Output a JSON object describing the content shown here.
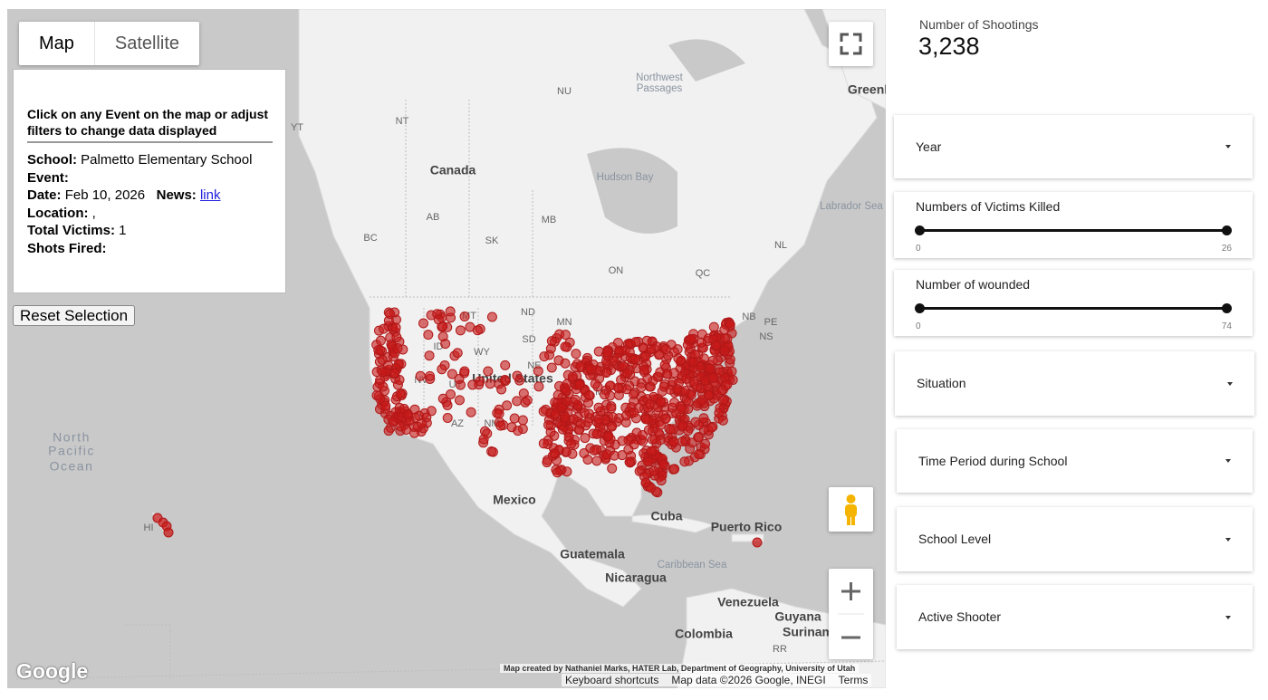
{
  "map": {
    "tabs": [
      "Map",
      "Satellite"
    ],
    "labels": [
      "NU",
      "Northwest",
      "Passages",
      "Greenl",
      "NT",
      "YT",
      "Canada",
      "Hudson Bay",
      "Labrador Sea",
      "AB",
      "MB",
      "BC",
      "SK",
      "ON",
      "QC",
      "NL",
      "NB",
      "PE",
      "NS",
      "ND",
      "MT",
      "MN",
      "SD",
      "WY",
      "ID",
      "NV",
      "UT",
      "United States",
      "NE",
      "MO",
      "AZ",
      "NM",
      "Mexico",
      "Cuba",
      "Puerto Rico",
      "Guatemala",
      "Nicaragua",
      "Caribbean Sea",
      "Venezuela",
      "Guyana",
      "Surinam",
      "Colombia",
      "RR",
      "North",
      "Pacific",
      "Ocean",
      "HI"
    ],
    "attribution": "Map created by Nathaniel Marks, HATER Lab, Department of Geography, University of Utah",
    "footer": [
      "Keyboard shortcuts",
      "Map data ©2026 Google, INEGI",
      "Terms"
    ],
    "logo": "Google"
  },
  "info": {
    "heading": "Click on any Event on the map or adjust filters to change data displayed",
    "school": {
      "label": "School:",
      "value": "Palmetto Elementary School"
    },
    "event": {
      "label": "Event:"
    },
    "date": {
      "label": "Date:",
      "value": "Feb 10, 2026"
    },
    "news": {
      "label": "News:",
      "value": "link"
    },
    "location": {
      "label": "Location:",
      "value": ","
    },
    "victims": {
      "label": "Total Victims:",
      "value": "1"
    },
    "shots": {
      "label": "Shots Fired:"
    }
  },
  "reset_button": "Reset Selection",
  "kpi": {
    "label": "Number of Shootings",
    "value": "3,238"
  },
  "filters": [
    {
      "label": "Year"
    },
    {
      "label": "Numbers of Victims Killed",
      "min": 0,
      "max": 26
    },
    {
      "label": "Number of wounded",
      "min": 0,
      "max": 74
    },
    {
      "label": "Situation"
    },
    {
      "label": "Time Period during School"
    },
    {
      "label": "School Level"
    },
    {
      "label": "Active Shooter"
    }
  ]
}
